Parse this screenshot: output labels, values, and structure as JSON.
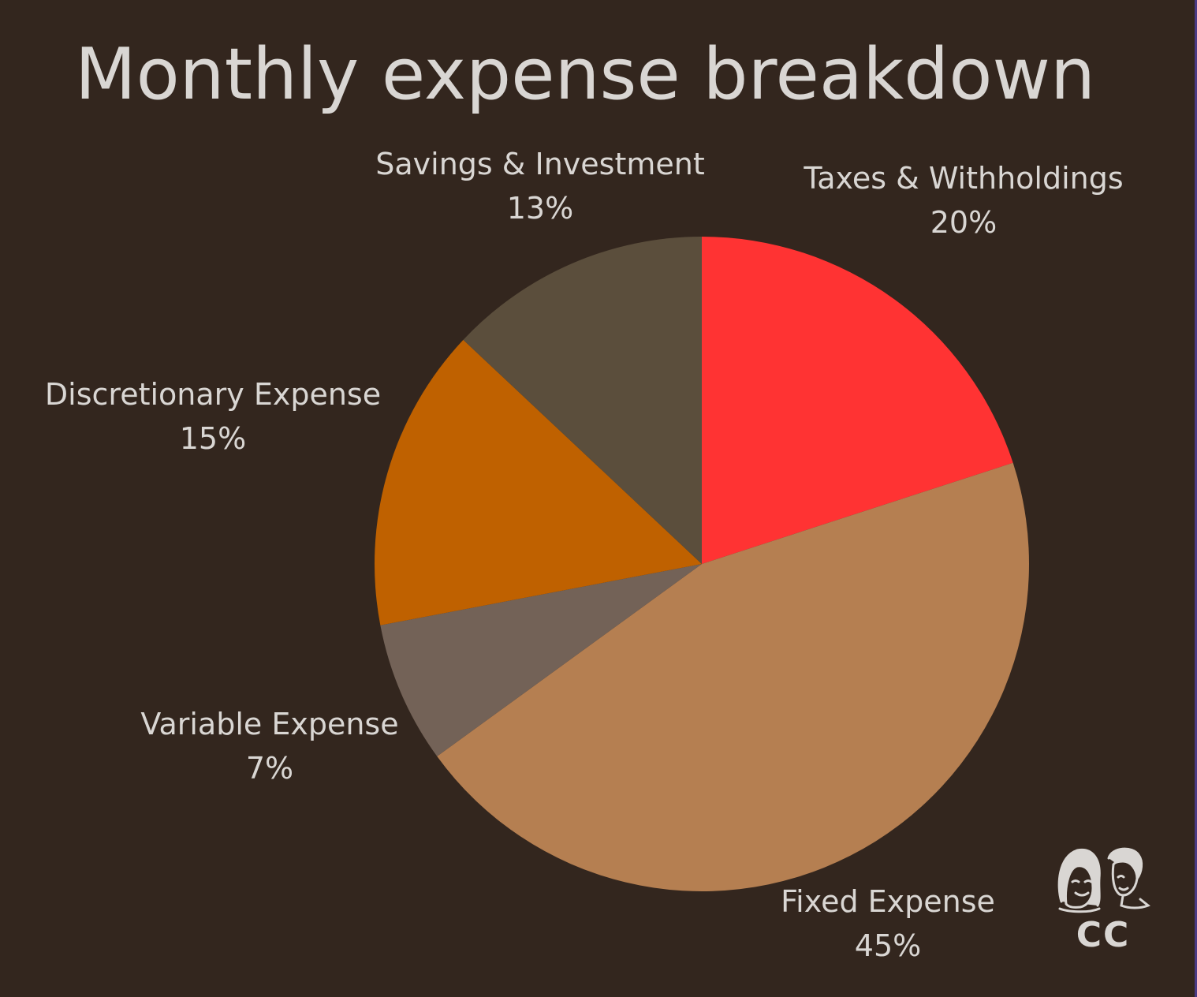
{
  "chart_data": {
    "type": "pie",
    "title": "Monthly expense breakdown",
    "start_angle_deg": 0,
    "direction": "clockwise",
    "slices": [
      {
        "label": "Taxes & Withholdings",
        "value": 20,
        "value_label": "20%",
        "color": "#ff3333"
      },
      {
        "label": "Fixed Expense",
        "value": 45,
        "value_label": "45%",
        "color": "#b57f51"
      },
      {
        "label": "Variable Expense",
        "value": 7,
        "value_label": "7%",
        "color": "#736257"
      },
      {
        "label": "Discretionary Expense",
        "value": 15,
        "value_label": "15%",
        "color": "#bf6100"
      },
      {
        "label": "Savings & Investment",
        "value": 13,
        "value_label": "13%",
        "color": "#5b4e3c"
      }
    ]
  },
  "colors": {
    "background": "#33261e",
    "text": "#d9d6d3",
    "logo": "#d9d6d3"
  },
  "logo": {
    "text": "CC",
    "icon": "two-faces-logo-icon"
  }
}
